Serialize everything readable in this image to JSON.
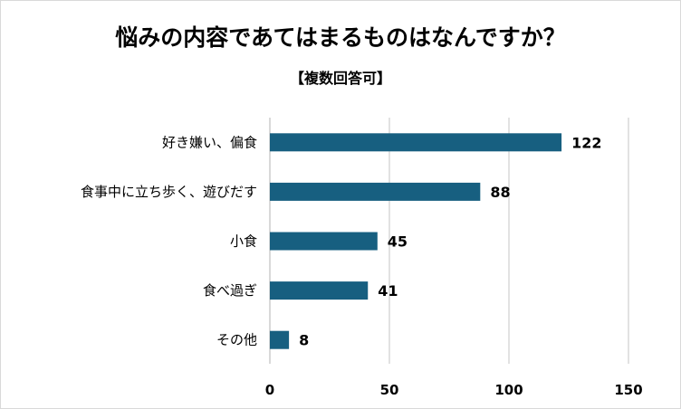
{
  "chart_data": {
    "type": "bar",
    "orientation": "horizontal",
    "title": "悩みの内容であてはまるものはなんですか？",
    "subtitle": "【複数回答可】",
    "categories": [
      "好き嫌い、偏食",
      "食事中に立ち歩く、遊びだす",
      "小食",
      "食べ過ぎ",
      "その他"
    ],
    "values": [
      122,
      88,
      45,
      41,
      8
    ],
    "xlim": [
      0,
      150
    ],
    "xticks": [
      0,
      50,
      100,
      150
    ],
    "grid": true,
    "bar_color": "#175f80",
    "grid_color": "#d9d9d9"
  }
}
